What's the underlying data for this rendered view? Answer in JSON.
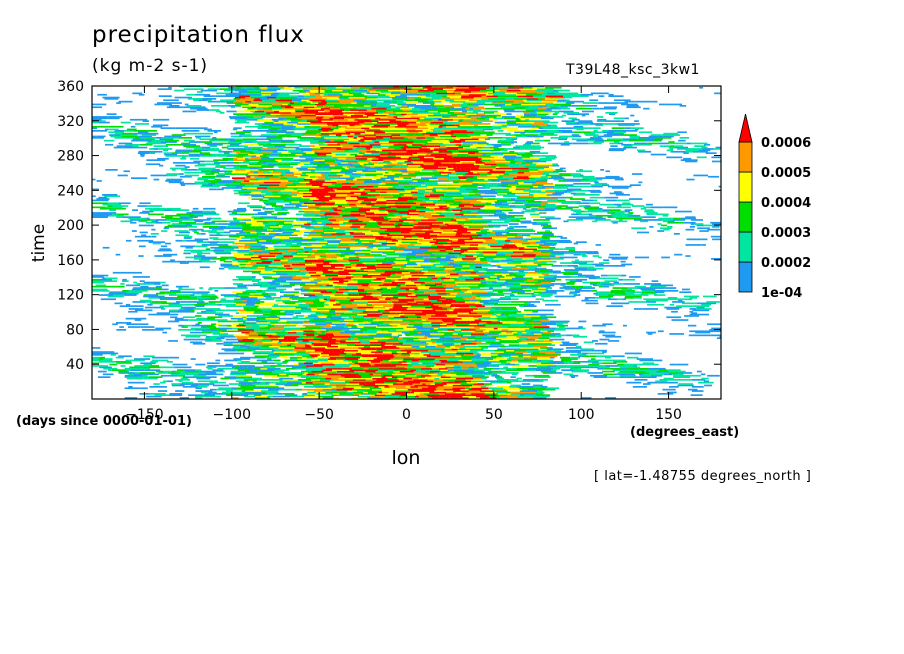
{
  "chart_data": {
    "type": "heatmap",
    "title": "precipitation flux",
    "units": "(kg m-2 s-1)",
    "run_label": "T39L48_ksc_3kw1",
    "xlabel": "lon",
    "ylabel": "time",
    "x_units": "(degrees_east)",
    "y_units": "(days since 0000-01-01)",
    "annotation": "[ lat=-1.48755 degrees_north ]",
    "xlim": [
      -180,
      180
    ],
    "ylim": [
      0,
      360
    ],
    "xticks": [
      -150,
      -100,
      -50,
      0,
      50,
      100,
      150
    ],
    "yticks": [
      40,
      80,
      120,
      160,
      200,
      240,
      280,
      320,
      360
    ],
    "colorbar": {
      "levels": [
        "1e-04",
        "0.0002",
        "0.0003",
        "0.0004",
        "0.0005",
        "0.0006"
      ],
      "colors": [
        "#1e9bf0",
        "#00e6a0",
        "#00dd00",
        "#ffff00",
        "#ff9900",
        "#ff0000"
      ],
      "extend": "max"
    },
    "convective_band_lon": [
      -100,
      80
    ],
    "peak_lon": [
      -60,
      40
    ]
  }
}
